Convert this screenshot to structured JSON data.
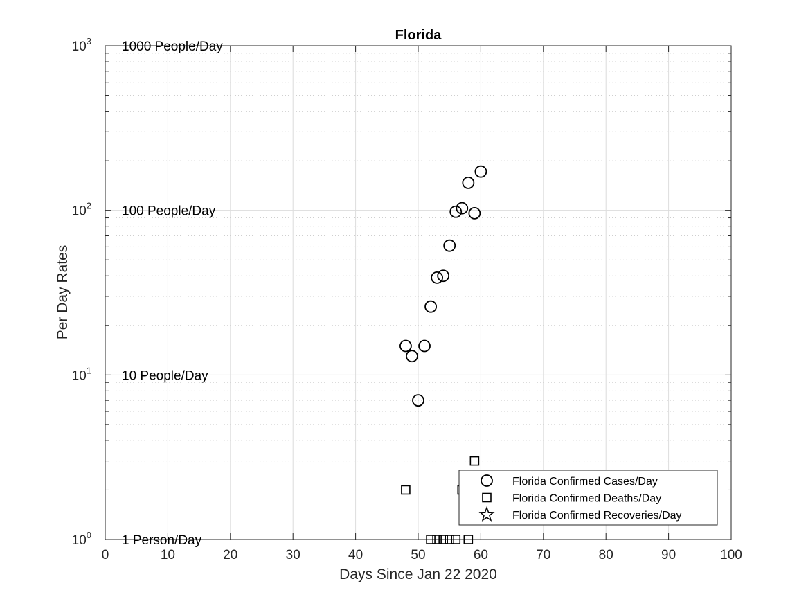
{
  "chart_data": {
    "type": "scatter",
    "title": "Florida",
    "xlabel": "Days Since Jan 22 2020",
    "ylabel": "Per Day Rates",
    "xlim": [
      0,
      100
    ],
    "ylim": [
      1,
      1000
    ],
    "yscale": "log",
    "grid": true,
    "x_ticks": [
      0,
      10,
      20,
      30,
      40,
      50,
      60,
      70,
      80,
      90,
      100
    ],
    "y_ticks": [
      {
        "value": 1,
        "base": "10",
        "exp": "0"
      },
      {
        "value": 10,
        "base": "10",
        "exp": "1"
      },
      {
        "value": 100,
        "base": "10",
        "exp": "2"
      },
      {
        "value": 1000,
        "base": "10",
        "exp": "3"
      }
    ],
    "reference_labels": [
      {
        "value": 1000,
        "text": "1000 People/Day"
      },
      {
        "value": 100,
        "text": "100 People/Day"
      },
      {
        "value": 10,
        "text": "10 People/Day"
      },
      {
        "value": 1,
        "text": "1 Person/Day"
      }
    ],
    "legend_position": "bottom-right",
    "series": [
      {
        "name": "Florida Confirmed Cases/Day",
        "marker": "circle",
        "color": "#000000",
        "points": [
          [
            48,
            15
          ],
          [
            49,
            13
          ],
          [
            50,
            7
          ],
          [
            51,
            15
          ],
          [
            52,
            26
          ],
          [
            53,
            39
          ],
          [
            54,
            40
          ],
          [
            55,
            61
          ],
          [
            56,
            98
          ],
          [
            57,
            103
          ],
          [
            58,
            147
          ],
          [
            59,
            96
          ],
          [
            60,
            172
          ]
        ]
      },
      {
        "name": "Florida Confirmed Deaths/Day",
        "marker": "square",
        "color": "#000000",
        "points": [
          [
            48,
            2
          ],
          [
            52,
            1
          ],
          [
            53,
            1
          ],
          [
            54,
            1
          ],
          [
            55,
            1
          ],
          [
            56,
            1
          ],
          [
            57,
            2
          ],
          [
            58,
            1
          ],
          [
            59,
            3
          ]
        ]
      },
      {
        "name": "Florida Confirmed Recoveries/Day",
        "marker": "star",
        "color": "#000000",
        "points": []
      }
    ]
  }
}
